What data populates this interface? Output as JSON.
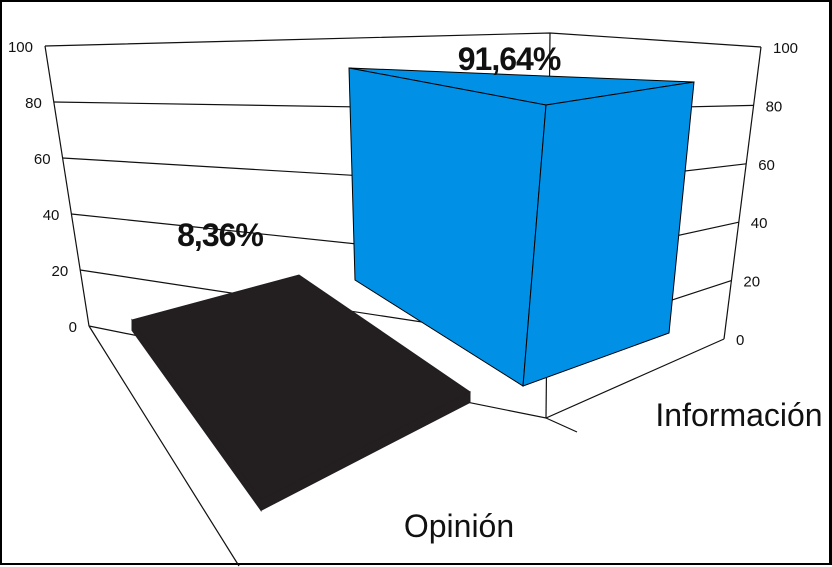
{
  "chart_data": {
    "type": "bar",
    "style": "3d",
    "categories": [
      "Opinión",
      "Información"
    ],
    "values": [
      8.36,
      91.64
    ],
    "data_labels": [
      "8,36%",
      "91,64%"
    ],
    "ylim": [
      0,
      100
    ],
    "yticks": [
      0,
      20,
      40,
      60,
      80,
      100
    ],
    "grid": true,
    "legend": "none",
    "colors": {
      "Opinión": "#231f20",
      "Información": "#0091e6",
      "Información_side": "#0072b8"
    }
  }
}
